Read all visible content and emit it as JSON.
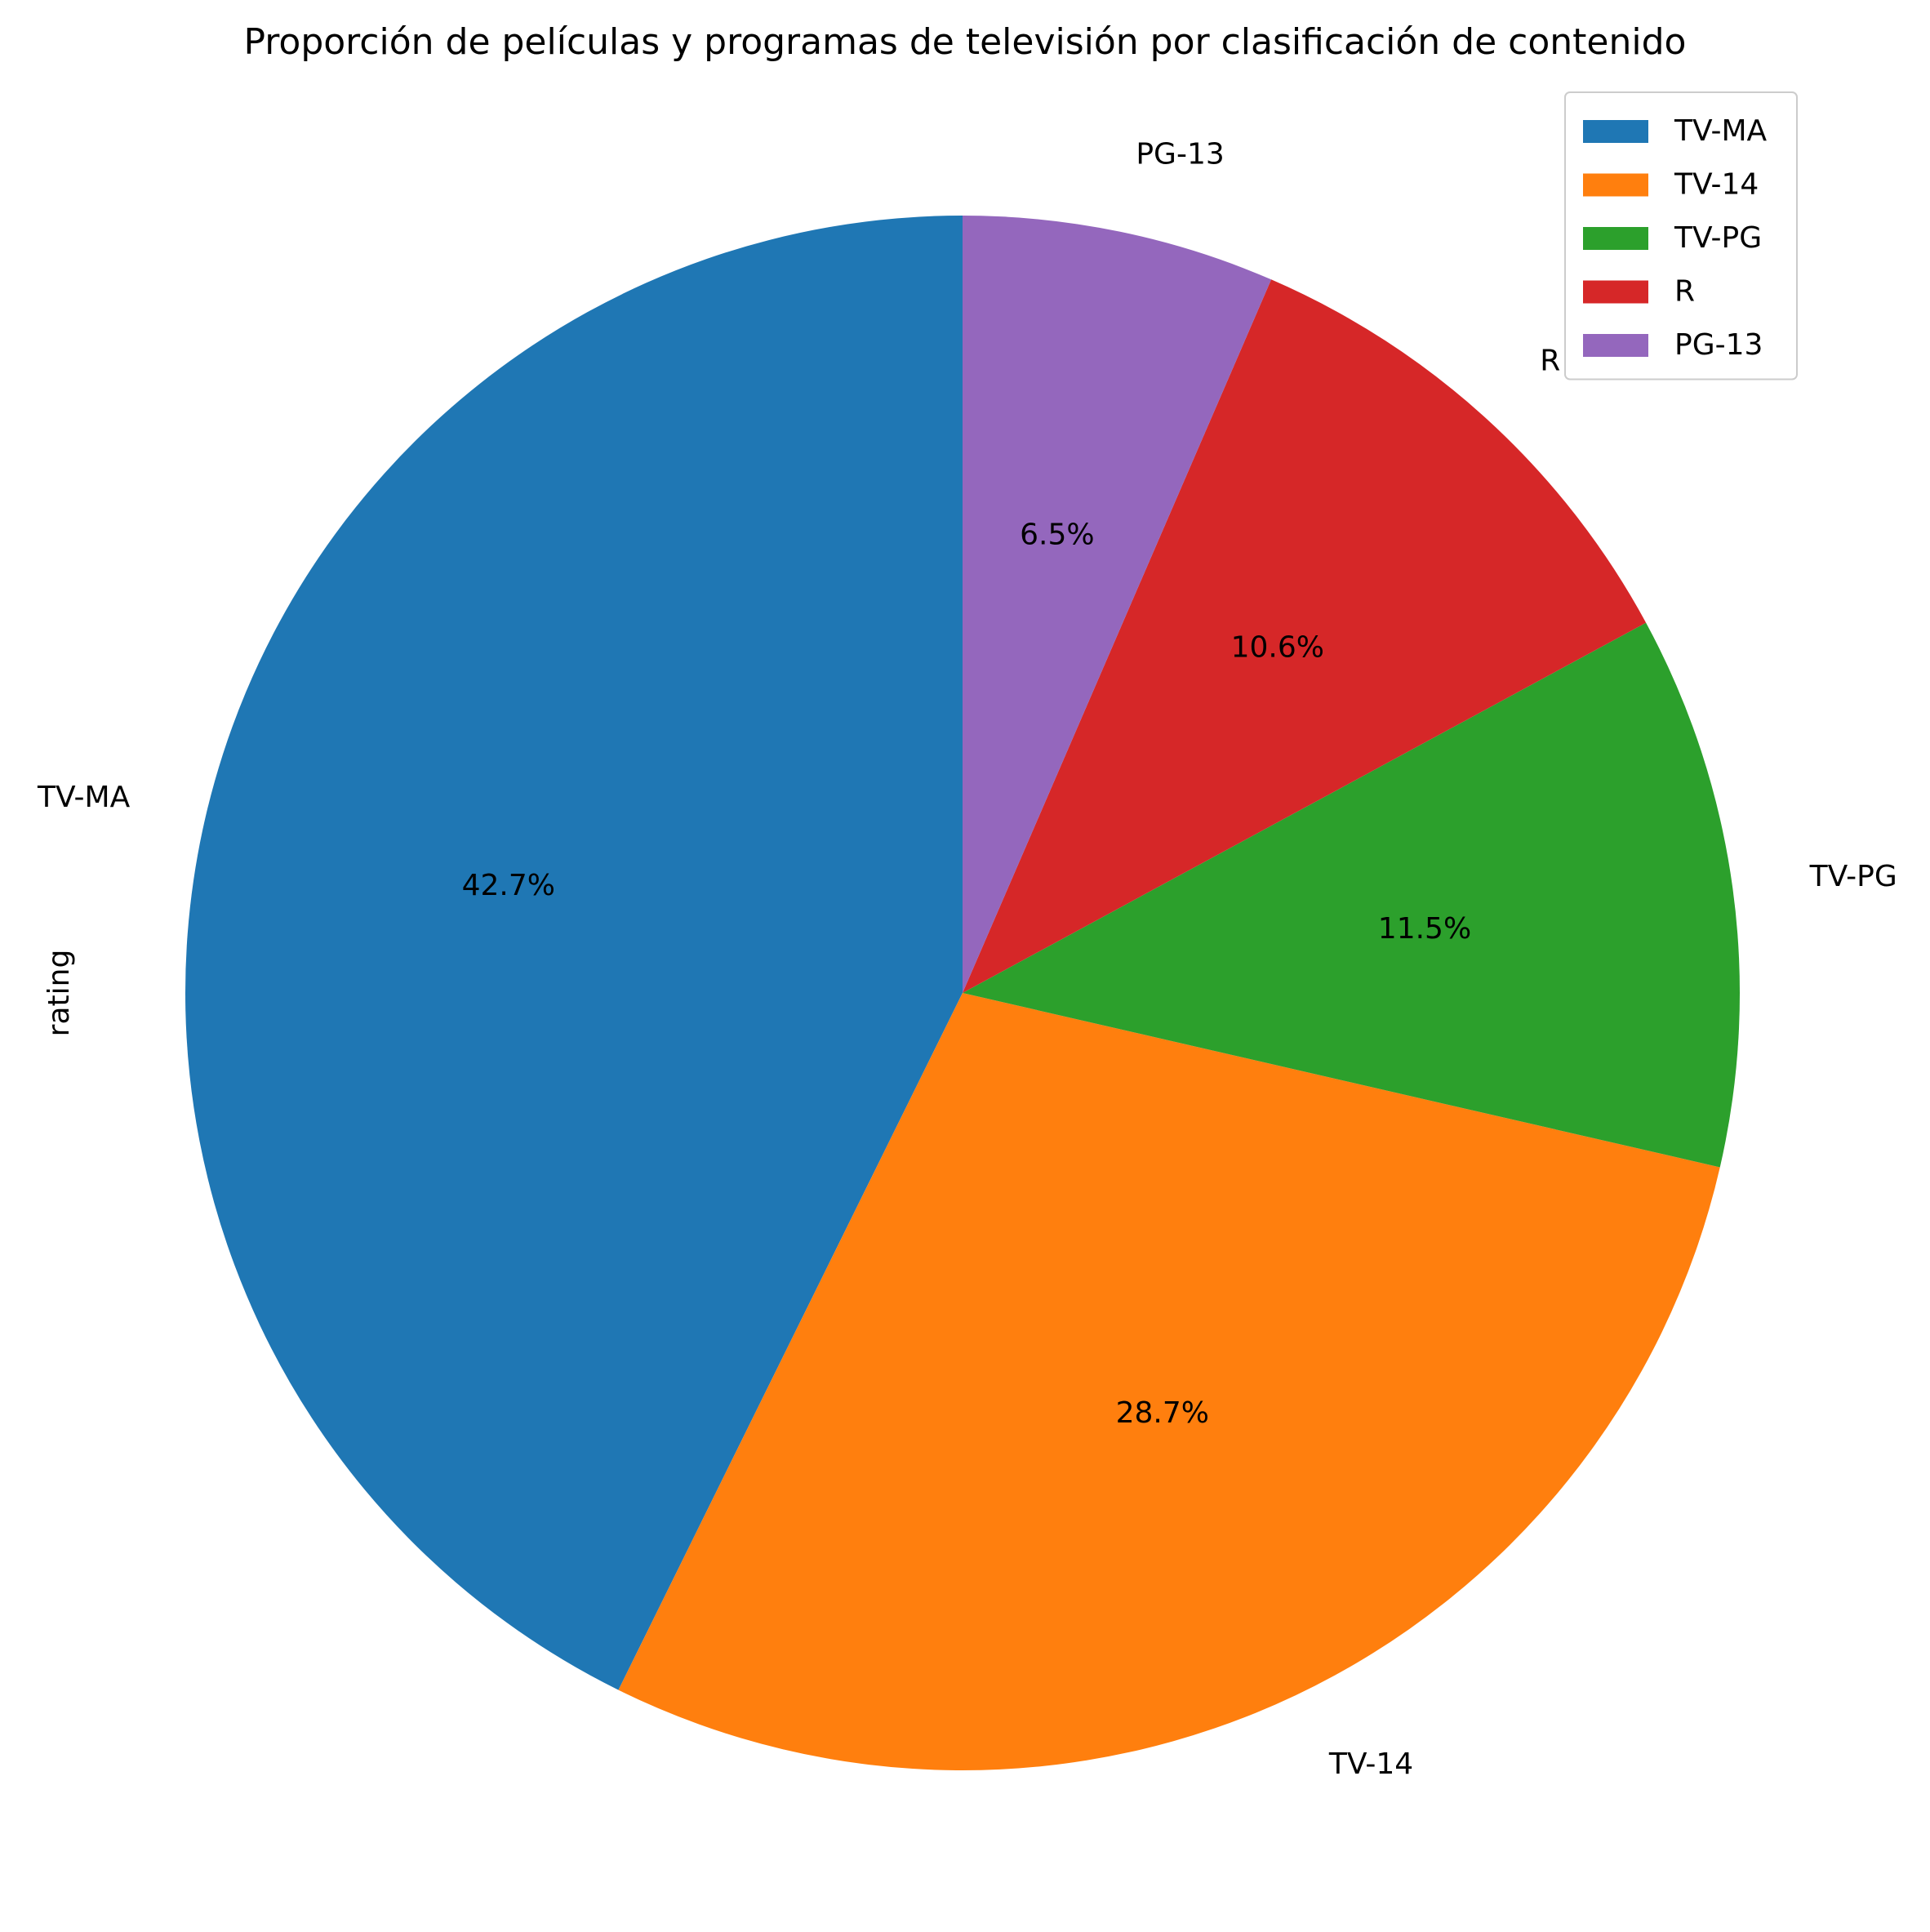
{
  "chart_data": {
    "type": "pie",
    "title": "Proporción de películas y programas de televisión por clasificación de contenido",
    "ylabel": "rating",
    "categories": [
      "TV-MA",
      "TV-14",
      "TV-PG",
      "R",
      "PG-13"
    ],
    "values": [
      42.7,
      28.7,
      11.5,
      10.6,
      6.5
    ],
    "percent_labels": [
      "42.7%",
      "28.7%",
      "11.5%",
      "10.6%",
      "6.5%"
    ],
    "colors": [
      "#1f77b4",
      "#ff7f0e",
      "#2ca02c",
      "#d62728",
      "#9467bd"
    ],
    "start_angle_deg": 90,
    "direction": "counterclockwise",
    "legend": {
      "placement": "top-right",
      "entries": [
        "TV-MA",
        "TV-14",
        "TV-PG",
        "R",
        "PG-13"
      ]
    }
  }
}
